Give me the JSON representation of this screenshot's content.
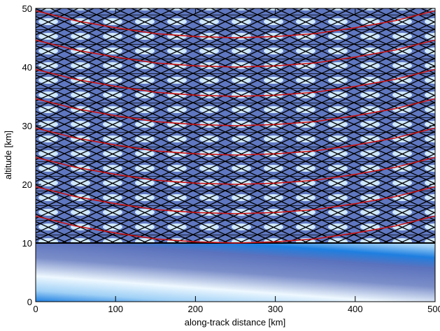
{
  "chart_data": {
    "type": "line",
    "x_label": "along-track distance [km]",
    "y_label": "altitude [km]",
    "xlim": [
      0,
      500
    ],
    "ylim": [
      0,
      50
    ],
    "xticks": [
      0,
      100,
      200,
      300,
      400,
      500
    ],
    "yticks": [
      0,
      10,
      20,
      30,
      40,
      50
    ],
    "x": [
      0,
      50,
      100,
      150,
      200,
      250,
      300,
      350,
      400,
      450,
      500
    ],
    "series": [
      {
        "color": "#cc1111",
        "values": [
          14.6,
          12.9,
          11.7,
          10.7,
          10.2,
          10,
          10.2,
          10.7,
          11.7,
          12.9,
          14.6
        ]
      },
      {
        "color": "#cc1111",
        "values": [
          19.6,
          17.9,
          16.7,
          15.7,
          15.2,
          15,
          15.2,
          15.7,
          16.7,
          17.9,
          19.6
        ]
      },
      {
        "color": "#cc1111",
        "values": [
          24.6,
          22.9,
          21.7,
          20.7,
          20.2,
          20,
          20.2,
          20.7,
          21.7,
          22.9,
          24.6
        ]
      },
      {
        "color": "#cc1111",
        "values": [
          29.6,
          27.9,
          26.7,
          25.7,
          25.2,
          25,
          25.2,
          25.7,
          26.7,
          27.9,
          29.6
        ]
      },
      {
        "color": "#cc1111",
        "values": [
          34.6,
          32.9,
          31.7,
          30.7,
          30.2,
          30,
          30.2,
          30.7,
          31.7,
          32.9,
          34.6
        ]
      },
      {
        "color": "#cc1111",
        "values": [
          39.6,
          37.9,
          36.7,
          35.7,
          35.2,
          35,
          35.2,
          35.7,
          36.7,
          37.9,
          39.6
        ]
      },
      {
        "color": "#cc1111",
        "values": [
          44.6,
          42.9,
          41.7,
          40.7,
          40.2,
          40,
          40.2,
          40.7,
          41.7,
          42.9,
          44.6
        ]
      },
      {
        "color": "#cc1111",
        "values": [
          49.6,
          47.9,
          46.7,
          45.7,
          45.2,
          45,
          45.2,
          45.7,
          46.7,
          47.9,
          49.6
        ]
      }
    ]
  }
}
